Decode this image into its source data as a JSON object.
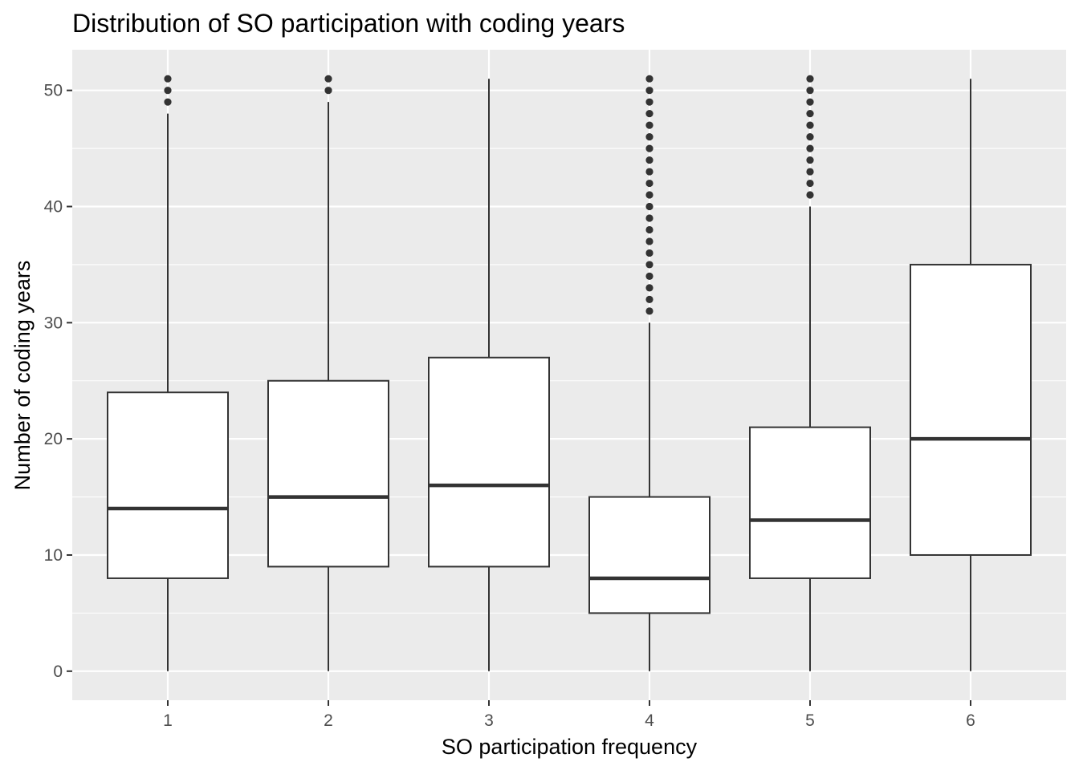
{
  "chart_data": {
    "type": "boxplot",
    "title": "Distribution of SO participation with coding years",
    "xlabel": "SO participation frequency",
    "ylabel": "Number of coding years",
    "categories": [
      "1",
      "2",
      "3",
      "4",
      "5",
      "6"
    ],
    "yticks": [
      0,
      10,
      20,
      30,
      40,
      50
    ],
    "ylim": [
      -2.5,
      53.5
    ],
    "grid": true,
    "legend": "none",
    "colors": {
      "panel": "#ebebeb",
      "grid": "#ffffff",
      "box_fill": "#ffffff",
      "line": "#333333"
    },
    "boxes": [
      {
        "category": "1",
        "lower_whisker": 0,
        "q1": 8,
        "median": 14,
        "q3": 24,
        "upper_whisker": 48,
        "outliers": [
          49,
          50,
          51
        ]
      },
      {
        "category": "2",
        "lower_whisker": 0,
        "q1": 9,
        "median": 15,
        "q3": 25,
        "upper_whisker": 49,
        "outliers": [
          50,
          51
        ]
      },
      {
        "category": "3",
        "lower_whisker": 0,
        "q1": 9,
        "median": 16,
        "q3": 27,
        "upper_whisker": 51,
        "outliers": []
      },
      {
        "category": "4",
        "lower_whisker": 0,
        "q1": 5,
        "median": 8,
        "q3": 15,
        "upper_whisker": 30,
        "outliers": [
          31,
          32,
          33,
          34,
          35,
          36,
          37,
          38,
          39,
          40,
          41,
          42,
          43,
          44,
          45,
          46,
          47,
          48,
          49,
          50,
          51
        ]
      },
      {
        "category": "5",
        "lower_whisker": 0,
        "q1": 8,
        "median": 13,
        "q3": 21,
        "upper_whisker": 40,
        "outliers": [
          41,
          42,
          43,
          44,
          45,
          46,
          47,
          48,
          49,
          50,
          51
        ]
      },
      {
        "category": "6",
        "lower_whisker": 0,
        "q1": 10,
        "median": 20,
        "q3": 35,
        "upper_whisker": 51,
        "outliers": []
      }
    ]
  }
}
